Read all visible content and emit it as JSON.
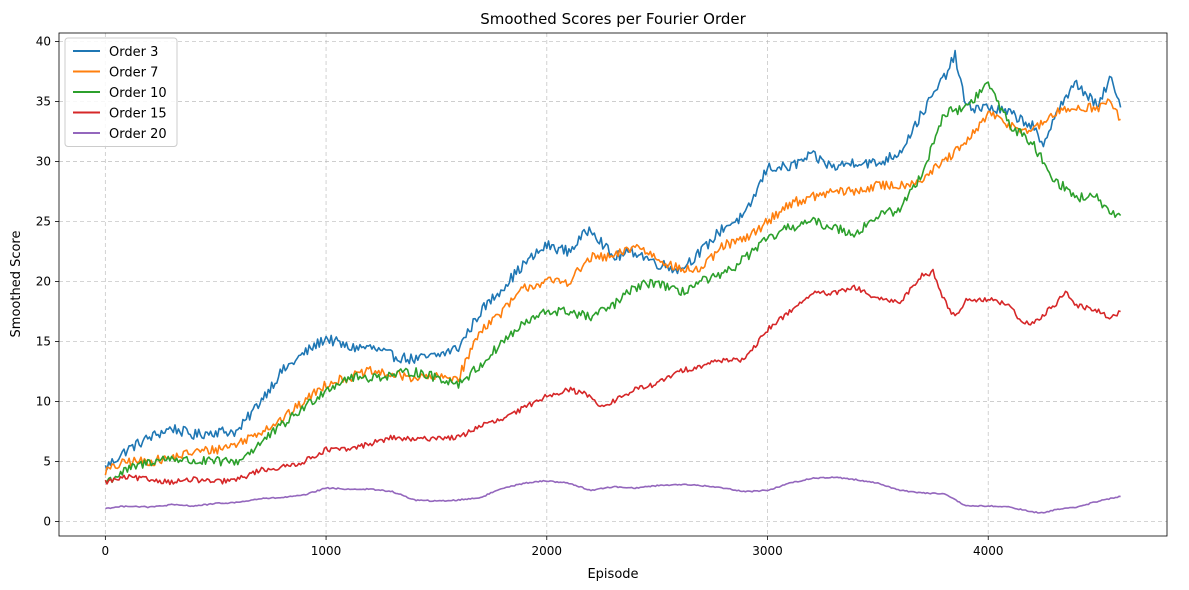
{
  "chart_data": {
    "type": "line",
    "title": "Smoothed Scores per Fourier Order",
    "xlabel": "Episode",
    "ylabel": "Smoothed Score",
    "xlim": [
      -210,
      4810
    ],
    "ylim": [
      -1.2,
      40.7
    ],
    "xticks": [
      0,
      1000,
      2000,
      3000,
      4000
    ],
    "yticks": [
      0,
      5,
      10,
      15,
      20,
      25,
      30,
      35,
      40
    ],
    "grid": true,
    "legend_position": "upper-left",
    "series": [
      {
        "name": "Order 3",
        "color": "#1f77b4",
        "x": [
          0,
          100,
          200,
          300,
          400,
          500,
          600,
          700,
          800,
          900,
          1000,
          1100,
          1200,
          1300,
          1400,
          1500,
          1600,
          1650,
          1700,
          1800,
          1900,
          2000,
          2100,
          2200,
          2300,
          2400,
          2500,
          2600,
          2700,
          2800,
          2900,
          3000,
          3100,
          3200,
          3300,
          3400,
          3500,
          3600,
          3700,
          3800,
          3850,
          3900,
          4000,
          4100,
          4200,
          4250,
          4300,
          4400,
          4500,
          4550,
          4600
        ],
        "y": [
          4.5,
          6.0,
          7.0,
          7.8,
          7.2,
          7.5,
          7.5,
          10.0,
          12.5,
          14.0,
          15.3,
          14.5,
          14.5,
          13.8,
          13.5,
          13.8,
          14.5,
          16.0,
          17.5,
          19.5,
          21.5,
          23.0,
          22.5,
          24.5,
          22.0,
          22.5,
          21.5,
          21.0,
          22.5,
          24.5,
          25.5,
          29.5,
          29.5,
          30.5,
          29.5,
          30.0,
          29.8,
          30.8,
          34.0,
          37.0,
          38.8,
          34.5,
          34.5,
          34.0,
          33.0,
          31.0,
          34.0,
          36.5,
          34.5,
          37.0,
          34.5
        ]
      },
      {
        "name": "Order 7",
        "color": "#ff7f0e",
        "x": [
          0,
          100,
          200,
          300,
          400,
          500,
          600,
          700,
          800,
          900,
          1000,
          1100,
          1200,
          1300,
          1400,
          1500,
          1600,
          1700,
          1800,
          1900,
          2000,
          2100,
          2200,
          2300,
          2400,
          2500,
          2600,
          2700,
          2800,
          2900,
          3000,
          3100,
          3200,
          3300,
          3400,
          3500,
          3600,
          3700,
          3800,
          3900,
          4000,
          4100,
          4200,
          4300,
          4400,
          4500,
          4550,
          4600
        ],
        "y": [
          4.2,
          5.0,
          5.0,
          5.3,
          5.8,
          6.0,
          6.5,
          7.5,
          8.5,
          10.0,
          11.5,
          12.0,
          12.5,
          12.2,
          12.0,
          12.0,
          12.0,
          16.0,
          17.5,
          19.5,
          20.0,
          20.0,
          22.0,
          22.0,
          23.0,
          22.0,
          21.0,
          21.0,
          23.0,
          23.5,
          25.0,
          26.5,
          27.0,
          27.5,
          27.5,
          28.0,
          28.0,
          28.5,
          30.0,
          31.5,
          34.0,
          33.0,
          32.5,
          34.0,
          34.5,
          34.5,
          35.0,
          33.5
        ]
      },
      {
        "name": "Order 10",
        "color": "#2ca02c",
        "x": [
          0,
          100,
          200,
          300,
          400,
          500,
          600,
          700,
          800,
          900,
          1000,
          1100,
          1200,
          1300,
          1400,
          1500,
          1600,
          1700,
          1800,
          1900,
          2000,
          2100,
          2200,
          2300,
          2400,
          2500,
          2600,
          2700,
          2800,
          2900,
          3000,
          3100,
          3200,
          3300,
          3400,
          3500,
          3600,
          3700,
          3800,
          3900,
          4000,
          4100,
          4200,
          4300,
          4400,
          4500,
          4550,
          4600
        ],
        "y": [
          3.3,
          4.3,
          5.0,
          5.3,
          5.0,
          5.0,
          5.0,
          6.5,
          8.0,
          9.5,
          11.0,
          12.0,
          12.0,
          12.2,
          12.5,
          12.0,
          11.5,
          13.0,
          15.0,
          16.5,
          17.5,
          17.5,
          17.0,
          18.0,
          19.5,
          20.0,
          19.0,
          20.0,
          20.5,
          22.0,
          23.5,
          24.5,
          25.0,
          24.5,
          24.0,
          25.5,
          26.0,
          29.0,
          34.0,
          34.5,
          36.5,
          33.0,
          31.5,
          28.5,
          27.0,
          27.0,
          25.5,
          25.5
        ]
      },
      {
        "name": "Order 15",
        "color": "#d62728",
        "x": [
          0,
          100,
          200,
          300,
          400,
          500,
          600,
          700,
          800,
          900,
          1000,
          1100,
          1200,
          1300,
          1400,
          1500,
          1600,
          1700,
          1800,
          1900,
          2000,
          2100,
          2200,
          2250,
          2300,
          2400,
          2500,
          2600,
          2700,
          2800,
          2900,
          3000,
          3100,
          3200,
          3300,
          3400,
          3500,
          3600,
          3700,
          3750,
          3800,
          3850,
          3900,
          4000,
          4100,
          4150,
          4200,
          4300,
          4350,
          4400,
          4500,
          4550,
          4600
        ],
        "y": [
          3.3,
          3.7,
          3.5,
          3.3,
          3.5,
          3.3,
          3.5,
          4.3,
          4.5,
          5.0,
          6.0,
          6.0,
          6.5,
          7.0,
          6.8,
          7.0,
          7.0,
          8.0,
          8.5,
          9.5,
          10.5,
          11.0,
          10.5,
          9.5,
          10.0,
          11.0,
          11.5,
          12.5,
          13.0,
          13.5,
          13.5,
          16.0,
          17.5,
          19.0,
          19.0,
          19.5,
          18.5,
          18.3,
          20.5,
          20.8,
          18.5,
          17.0,
          18.5,
          18.5,
          18.0,
          16.5,
          16.5,
          18.0,
          19.2,
          18.0,
          17.5,
          17.0,
          17.5
        ]
      },
      {
        "name": "Order 20",
        "color": "#9467bd",
        "x": [
          0,
          100,
          200,
          300,
          400,
          500,
          600,
          700,
          800,
          900,
          1000,
          1100,
          1200,
          1300,
          1400,
          1500,
          1600,
          1700,
          1800,
          1900,
          2000,
          2100,
          2200,
          2300,
          2400,
          2500,
          2600,
          2700,
          2800,
          2900,
          3000,
          3100,
          3200,
          3300,
          3400,
          3500,
          3600,
          3700,
          3800,
          3900,
          4000,
          4100,
          4200,
          4250,
          4300,
          4400,
          4500,
          4600
        ],
        "y": [
          1.1,
          1.3,
          1.2,
          1.4,
          1.3,
          1.5,
          1.6,
          1.9,
          2.0,
          2.2,
          2.8,
          2.7,
          2.7,
          2.5,
          1.8,
          1.7,
          1.8,
          2.0,
          2.8,
          3.2,
          3.4,
          3.2,
          2.6,
          2.9,
          2.8,
          3.0,
          3.1,
          3.0,
          2.8,
          2.5,
          2.6,
          3.2,
          3.6,
          3.7,
          3.5,
          3.2,
          2.6,
          2.4,
          2.3,
          1.3,
          1.3,
          1.2,
          0.8,
          0.7,
          1.0,
          1.2,
          1.7,
          2.1
        ]
      }
    ]
  }
}
